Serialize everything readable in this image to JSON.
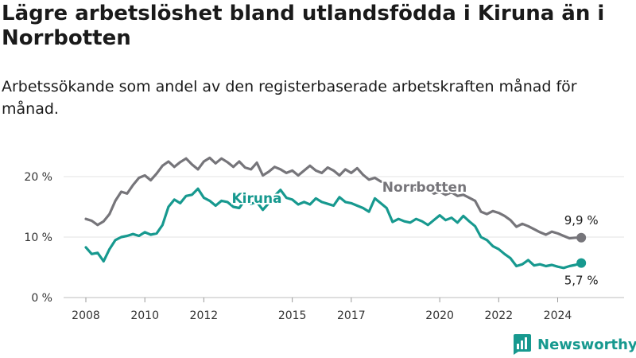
{
  "header": {
    "title": "Lägre arbetslöshet bland utlandsfödda i Kiruna än i Norrbotten",
    "subtitle": "Arbetssökande som andel av den registerbaserade arbetskraften månad för månad."
  },
  "brand": {
    "name": "Newsworthy",
    "icon": "bar-chart-logo-icon",
    "color": "#17998f"
  },
  "chart_data": {
    "type": "line",
    "ylim": [
      0,
      25
    ],
    "xlim": [
      2008.0,
      2025.2
    ],
    "yticks": [
      0,
      10,
      20
    ],
    "ytick_labels": [
      "0 %",
      "10 %",
      "20 %"
    ],
    "xticks": [
      2008,
      2010,
      2012,
      2015,
      2017,
      2020,
      2022,
      2024
    ],
    "xtick_labels": [
      "2008",
      "2010",
      "2012",
      "2015",
      "2017",
      "2020",
      "2022",
      "2024"
    ],
    "grid": "horizontal",
    "series": [
      {
        "name": "Norrbotten",
        "color": "#76757a",
        "end_label": "9,9 %",
        "x": [
          2008.0,
          2008.2,
          2008.4,
          2008.6,
          2008.8,
          2009.0,
          2009.2,
          2009.4,
          2009.6,
          2009.8,
          2010.0,
          2010.2,
          2010.4,
          2010.6,
          2010.8,
          2011.0,
          2011.2,
          2011.4,
          2011.6,
          2011.8,
          2012.0,
          2012.2,
          2012.4,
          2012.6,
          2012.8,
          2013.0,
          2013.2,
          2013.4,
          2013.6,
          2013.8,
          2014.0,
          2014.2,
          2014.4,
          2014.6,
          2014.8,
          2015.0,
          2015.2,
          2015.4,
          2015.6,
          2015.8,
          2016.0,
          2016.2,
          2016.4,
          2016.6,
          2016.8,
          2017.0,
          2017.2,
          2017.4,
          2017.6,
          2017.8,
          2018.0,
          2018.2,
          2018.4,
          2018.6,
          2018.8,
          2019.0,
          2019.2,
          2019.4,
          2019.6,
          2019.8,
          2020.0,
          2020.2,
          2020.4,
          2020.6,
          2020.8,
          2021.0,
          2021.2,
          2021.4,
          2021.6,
          2021.8,
          2022.0,
          2022.2,
          2022.4,
          2022.6,
          2022.8,
          2023.0,
          2023.2,
          2023.4,
          2023.6,
          2023.8,
          2024.0,
          2024.2,
          2024.4,
          2024.6,
          2024.8
        ],
        "values": [
          13.0,
          12.7,
          12.0,
          12.6,
          13.8,
          16.0,
          17.5,
          17.2,
          18.6,
          19.8,
          20.2,
          19.4,
          20.5,
          21.8,
          22.5,
          21.6,
          22.4,
          23.0,
          22.0,
          21.2,
          22.5,
          23.1,
          22.2,
          23.0,
          22.4,
          21.6,
          22.5,
          21.5,
          21.2,
          22.3,
          20.2,
          20.8,
          21.6,
          21.2,
          20.6,
          21.0,
          20.2,
          21.0,
          21.8,
          21.0,
          20.6,
          21.5,
          21.0,
          20.2,
          21.2,
          20.6,
          21.4,
          20.3,
          19.5,
          19.8,
          19.2,
          19.0,
          18.6,
          18.2,
          18.8,
          18.4,
          17.8,
          17.6,
          18.0,
          17.2,
          17.5,
          17.0,
          17.4,
          16.8,
          17.0,
          16.5,
          16.0,
          14.2,
          13.8,
          14.3,
          14.0,
          13.5,
          12.8,
          11.7,
          12.2,
          11.8,
          11.3,
          10.8,
          10.4,
          10.9,
          10.6,
          10.2,
          9.8,
          9.9,
          9.9
        ]
      },
      {
        "name": "Kiruna",
        "color": "#17998f",
        "end_label": "5,7 %",
        "x": [
          2008.0,
          2008.2,
          2008.4,
          2008.6,
          2008.8,
          2009.0,
          2009.2,
          2009.4,
          2009.6,
          2009.8,
          2010.0,
          2010.2,
          2010.4,
          2010.6,
          2010.8,
          2011.0,
          2011.2,
          2011.4,
          2011.6,
          2011.8,
          2012.0,
          2012.2,
          2012.4,
          2012.6,
          2012.8,
          2013.0,
          2013.2,
          2013.4,
          2013.6,
          2013.8,
          2014.0,
          2014.2,
          2014.4,
          2014.6,
          2014.8,
          2015.0,
          2015.2,
          2015.4,
          2015.6,
          2015.8,
          2016.0,
          2016.2,
          2016.4,
          2016.6,
          2016.8,
          2017.0,
          2017.2,
          2017.4,
          2017.6,
          2017.8,
          2018.0,
          2018.2,
          2018.4,
          2018.6,
          2018.8,
          2019.0,
          2019.2,
          2019.4,
          2019.6,
          2019.8,
          2020.0,
          2020.2,
          2020.4,
          2020.6,
          2020.8,
          2021.0,
          2021.2,
          2021.4,
          2021.6,
          2021.8,
          2022.0,
          2022.2,
          2022.4,
          2022.6,
          2022.8,
          2023.0,
          2023.2,
          2023.4,
          2023.6,
          2023.8,
          2024.0,
          2024.2,
          2024.4,
          2024.6,
          2024.8
        ],
        "values": [
          8.3,
          7.2,
          7.4,
          6.0,
          8.0,
          9.5,
          10.0,
          10.2,
          10.5,
          10.2,
          10.8,
          10.4,
          10.6,
          12.0,
          15.0,
          16.2,
          15.6,
          16.8,
          17.0,
          18.0,
          16.5,
          16.0,
          15.2,
          16.0,
          15.8,
          15.0,
          14.8,
          16.2,
          15.5,
          15.8,
          14.5,
          15.6,
          16.8,
          17.8,
          16.5,
          16.2,
          15.4,
          15.8,
          15.4,
          16.4,
          15.8,
          15.5,
          15.2,
          16.6,
          15.8,
          15.6,
          15.2,
          14.8,
          14.2,
          16.4,
          15.6,
          14.8,
          12.5,
          13.0,
          12.6,
          12.4,
          13.0,
          12.6,
          12.0,
          12.8,
          13.6,
          12.8,
          13.2,
          12.4,
          13.5,
          12.6,
          11.8,
          10.0,
          9.5,
          8.5,
          8.0,
          7.2,
          6.5,
          5.2,
          5.5,
          6.2,
          5.3,
          5.5,
          5.2,
          5.4,
          5.1,
          4.9,
          5.2,
          5.4,
          5.7
        ]
      }
    ]
  }
}
